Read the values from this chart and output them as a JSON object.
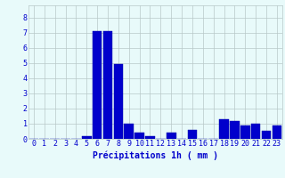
{
  "categories": [
    0,
    1,
    2,
    3,
    4,
    5,
    6,
    7,
    8,
    9,
    10,
    11,
    12,
    13,
    14,
    15,
    16,
    17,
    18,
    19,
    20,
    21,
    22,
    23
  ],
  "values": [
    0,
    0,
    0,
    0,
    0,
    0.2,
    7.1,
    7.1,
    4.9,
    1.0,
    0.4,
    0.2,
    0,
    0.4,
    0,
    0.6,
    0,
    0,
    1.3,
    1.2,
    0.9,
    1.0,
    0.5,
    0.9
  ],
  "bar_color": "#0000cc",
  "bar_edge_color": "#0000aa",
  "background_color": "#e8fafa",
  "grid_color": "#b8c8c8",
  "text_color": "#0000cc",
  "xlabel": "Précipitations 1h ( mm )",
  "ylim": [
    0,
    8.8
  ],
  "yticks": [
    0,
    1,
    2,
    3,
    4,
    5,
    6,
    7,
    8
  ],
  "xlabel_fontsize": 7,
  "tick_fontsize": 6
}
